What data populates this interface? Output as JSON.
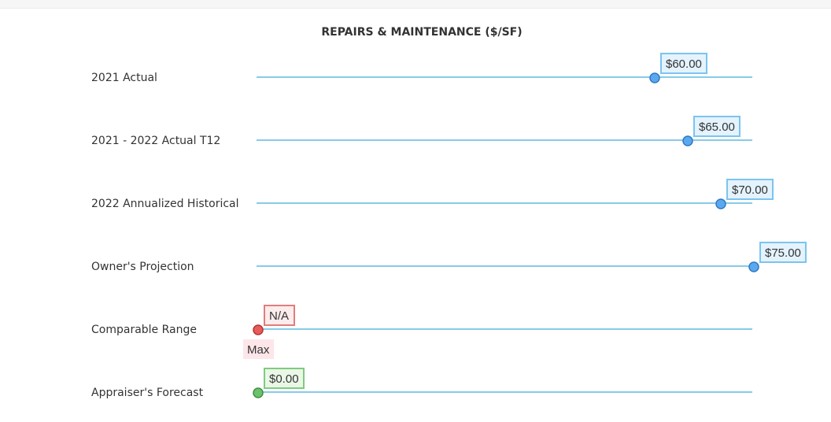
{
  "chart_data": {
    "type": "scatter",
    "title": "REPAIRS & MAINTENANCE ($/SF)",
    "xlim": [
      0,
      75
    ],
    "grid": false,
    "legend": "none",
    "rows": [
      {
        "label": "2021 Actual",
        "value": 60,
        "value_label": "$60.00",
        "color": "blue"
      },
      {
        "label": "2021 - 2022 Actual T12",
        "value": 65,
        "value_label": "$65.00",
        "color": "blue"
      },
      {
        "label": "2022 Annualized Historical",
        "value": 70,
        "value_label": "$70.00",
        "color": "blue"
      },
      {
        "label": "Owner's Projection",
        "value": 75,
        "value_label": "$75.00",
        "color": "blue"
      },
      {
        "label": "Comparable Range",
        "value": 0,
        "value_label": "N/A",
        "sub_label": "Max",
        "color": "red"
      },
      {
        "label": "Appraiser's Forecast",
        "value": 0,
        "value_label": "$0.00",
        "color": "green"
      }
    ]
  },
  "colors": {
    "track": "#87cbe8",
    "blue": {
      "fill": "#5aa9f0",
      "stroke": "#2f79c4",
      "box_fill": "#e4f3fd",
      "box_stroke": "#7cc4ee"
    },
    "red": {
      "fill": "#e85b5b",
      "stroke": "#b83232",
      "box_fill": "#fdecec",
      "box_stroke": "#e07d7d",
      "sub_fill": "#fde6e9"
    },
    "green": {
      "fill": "#6cc26c",
      "stroke": "#3f8f3f",
      "box_fill": "#eaf7e7",
      "box_stroke": "#7fcb7f"
    }
  }
}
